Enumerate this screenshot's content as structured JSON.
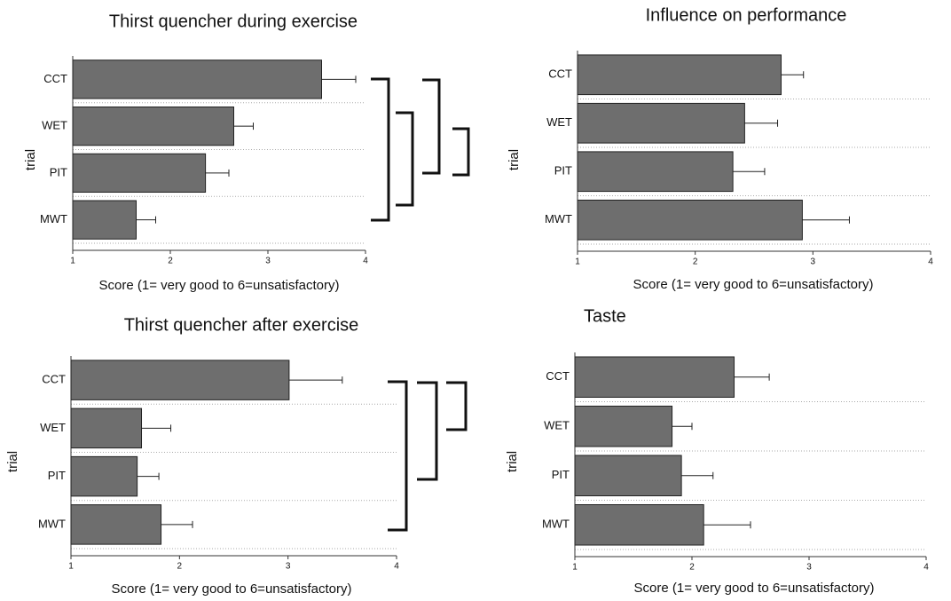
{
  "chart_data": [
    {
      "type": "bar",
      "orientation": "horizontal",
      "title": "Thirst quencher during exercise",
      "xlabel": "Score (1= very good to 6=unsatisfactory)",
      "ylabel": "trial",
      "categories": [
        "CCT",
        "WET",
        "PIT",
        "MWT"
      ],
      "values": [
        3.55,
        2.65,
        2.36,
        1.65
      ],
      "errors": [
        0.35,
        0.2,
        0.24,
        0.2
      ],
      "color": "#6e6e6e",
      "xlim": [
        1,
        4
      ],
      "xticks": [
        1,
        2,
        3,
        4
      ]
    },
    {
      "type": "bar",
      "orientation": "horizontal",
      "title": "Influence on performance",
      "xlabel": "Score (1= very good to 6=unsatisfactory)",
      "ylabel": "trial",
      "categories": [
        "CCT",
        "WET",
        "PIT",
        "MWT"
      ],
      "values": [
        2.73,
        2.42,
        2.32,
        2.91
      ],
      "errors": [
        0.19,
        0.28,
        0.27,
        0.4
      ],
      "color": "#6e6e6e",
      "xlim": [
        1,
        4
      ],
      "xticks": [
        1,
        2,
        3,
        4
      ]
    },
    {
      "type": "bar",
      "orientation": "horizontal",
      "title": "Thirst quencher after exercise",
      "xlabel": "Score (1= very good to 6=unsatisfactory)",
      "ylabel": "trial",
      "categories": [
        "CCT",
        "WET",
        "PIT",
        "MWT"
      ],
      "values": [
        3.01,
        1.65,
        1.61,
        1.83
      ],
      "errors": [
        0.49,
        0.27,
        0.2,
        0.29
      ],
      "color": "#6e6e6e",
      "xlim": [
        1,
        4
      ],
      "xticks": [
        1,
        2,
        3,
        4
      ]
    },
    {
      "type": "bar",
      "orientation": "horizontal",
      "title": "Taste",
      "xlabel": "Score (1= very good to 6=unsatisfactory)",
      "ylabel": "trial",
      "categories": [
        "CCT",
        "WET",
        "PIT",
        "MWT"
      ],
      "values": [
        2.36,
        1.83,
        1.91,
        2.1
      ],
      "errors": [
        0.3,
        0.17,
        0.27,
        0.4
      ],
      "color": "#6e6e6e",
      "xlim": [
        1,
        4
      ],
      "xticks": [
        1,
        2,
        3,
        4
      ]
    }
  ]
}
